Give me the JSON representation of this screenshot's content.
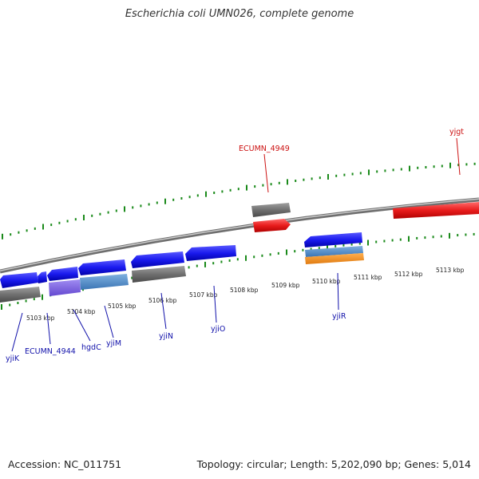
{
  "title": "Escherichia coli UMN026, complete genome",
  "footer": {
    "accession": "Accession: NC_011751",
    "summary": "Topology: circular; Length: 5,202,090 bp; Genes: 5,014"
  },
  "colors": {
    "backbone": "#8c8c8c",
    "tick": "#1a8a1a",
    "forward_cds": "#e81c1c",
    "reverse_cds": "#1a1aee",
    "pseudo": "#707070",
    "purple": "#7c5ce0",
    "steel": "#4d8ac9",
    "orange": "#f08c1a",
    "forward_label": "#cc1111",
    "reverse_label": "#1111aa"
  },
  "axis": {
    "tick_labels": [
      "5103 kbp",
      "5104 kbp",
      "5105 kbp",
      "5106 kbp",
      "5107 kbp",
      "5108 kbp",
      "5109 kbp",
      "5110 kbp",
      "5111 kbp",
      "5112 kbp",
      "5113 kbp"
    ]
  },
  "genes": [
    {
      "label": "yjiK",
      "strand": "reverse"
    },
    {
      "label": "ECUMN_4944",
      "strand": "reverse"
    },
    {
      "label": "hgdC",
      "strand": "reverse"
    },
    {
      "label": "yjiM",
      "strand": "reverse"
    },
    {
      "label": "yjiN",
      "strand": "reverse"
    },
    {
      "label": "yjiO",
      "strand": "reverse"
    },
    {
      "label": "yjiR",
      "strand": "reverse"
    },
    {
      "label": "ECUMN_4949",
      "strand": "forward"
    },
    {
      "label": "yjgt",
      "strand": "forward"
    }
  ]
}
